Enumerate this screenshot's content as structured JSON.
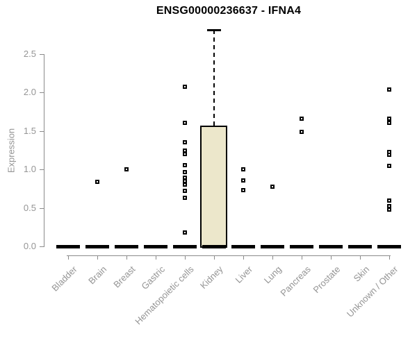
{
  "chart_data": {
    "type": "box",
    "title": "ENSG00000236637 - IFNA4",
    "ylabel": "Expression",
    "xlabel": "",
    "grid": false,
    "legend": "none",
    "ylim": [
      0,
      2.85
    ],
    "yticks": [
      0,
      0.5,
      1,
      1.5,
      2,
      2.5
    ],
    "ytick_labels": [
      "0.0",
      "0.5",
      "1.0",
      "1.5",
      "2.0",
      "2.5"
    ],
    "categories": [
      "Bladder",
      "Brain",
      "Breast",
      "Gastric",
      "Hematopoietic cells",
      "Kidney",
      "Liver",
      "Lung",
      "Pancreas",
      "Prostate",
      "Skin",
      "Unknown / Other"
    ],
    "series": [
      {
        "category": "Bladder",
        "median": 0,
        "q1": 0,
        "q3": 0,
        "whisker_high": 0,
        "points": []
      },
      {
        "category": "Brain",
        "median": 0,
        "q1": 0,
        "q3": 0,
        "whisker_high": 0,
        "points": [
          0.84
        ]
      },
      {
        "category": "Breast",
        "median": 0,
        "q1": 0,
        "q3": 0,
        "whisker_high": 0,
        "points": [
          1.0
        ]
      },
      {
        "category": "Gastric",
        "median": 0,
        "q1": 0,
        "q3": 0,
        "whisker_high": 0,
        "points": []
      },
      {
        "category": "Hematopoietic cells",
        "median": 0,
        "q1": 0,
        "q3": 0,
        "whisker_high": 0,
        "points": [
          2.08,
          1.61,
          1.35,
          1.25,
          1.2,
          1.06,
          0.97,
          0.89,
          0.85,
          0.8,
          0.72,
          0.63,
          0.18
        ]
      },
      {
        "category": "Kidney",
        "median": 0,
        "q1": 0,
        "q3": 1.57,
        "whisker_high": 2.82,
        "points": []
      },
      {
        "category": "Liver",
        "median": 0,
        "q1": 0,
        "q3": 0,
        "whisker_high": 0,
        "points": [
          1.0,
          0.86,
          0.73
        ]
      },
      {
        "category": "Lung",
        "median": 0,
        "q1": 0,
        "q3": 0,
        "whisker_high": 0,
        "points": [
          0.78
        ]
      },
      {
        "category": "Pancreas",
        "median": 0,
        "q1": 0,
        "q3": 0,
        "whisker_high": 0,
        "points": [
          1.66,
          1.49
        ]
      },
      {
        "category": "Prostate",
        "median": 0,
        "q1": 0,
        "q3": 0,
        "whisker_high": 0,
        "points": []
      },
      {
        "category": "Skin",
        "median": 0,
        "q1": 0,
        "q3": 0,
        "whisker_high": 0,
        "points": []
      },
      {
        "category": "Unknown / Other",
        "median": 0,
        "q1": 0,
        "q3": 0,
        "whisker_high": 0,
        "points": [
          2.04,
          1.66,
          1.61,
          1.23,
          1.19,
          1.05,
          0.6,
          0.52,
          0.48
        ]
      }
    ],
    "colors": {
      "box_fill": "#ece7cb",
      "box_border": "#000000",
      "median_bar": "#000000",
      "point": "#000000",
      "axis": "#8a8a8a",
      "tick_text": "#959595",
      "title_text": "#000000",
      "background": "#ffffff"
    }
  }
}
